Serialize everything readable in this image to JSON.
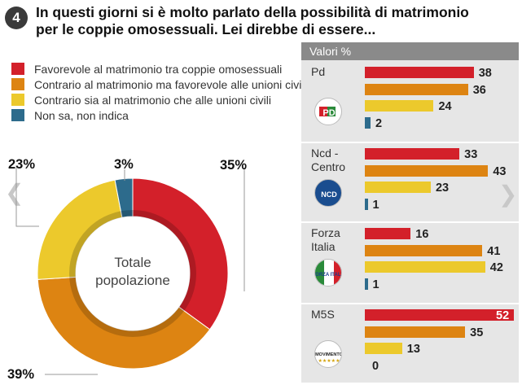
{
  "question": {
    "number": "4",
    "title_line1": "In questi giorni si è molto parlato della possibilità di matrimonio",
    "title_line2": "per le coppie omosessuali. Lei direbbe di essere..."
  },
  "legend": [
    {
      "label": "Favorevole al matrimonio tra coppie omosessuali",
      "color": "#d3202a"
    },
    {
      "label": "Contrario al matrimonio ma favorevole alle unioni civili",
      "color": "#dd8412"
    },
    {
      "label": "Contrario sia al matrimonio che alle unioni civili",
      "color": "#ecc92c"
    },
    {
      "label": "Non sa, non indica",
      "color": "#2d6b8c"
    }
  ],
  "panel_header": "Valori %",
  "chart_data": [
    {
      "type": "pie",
      "center_label_line1": "Totale",
      "center_label_line2": "popolazione",
      "slices": [
        {
          "value": 35,
          "label": "35%",
          "color": "#d3202a"
        },
        {
          "value": 39,
          "label": "39%",
          "color": "#dd8412"
        },
        {
          "value": 23,
          "label": "23%",
          "color": "#ecc92c"
        },
        {
          "value": 3,
          "label": "3%",
          "color": "#2d6b8c"
        }
      ]
    },
    {
      "type": "bar",
      "orientation": "horizontal",
      "colors": [
        "#d3202a",
        "#dd8412",
        "#ecc92c",
        "#2d6b8c"
      ],
      "xlim": [
        0,
        52
      ],
      "groups": [
        {
          "name_lines": [
            "Pd"
          ],
          "values": [
            38,
            36,
            24,
            2
          ],
          "logo": "pd-logo"
        },
        {
          "name_lines": [
            "Ncd -",
            "Centro"
          ],
          "values": [
            33,
            43,
            23,
            1
          ],
          "logo": "ncd-logo",
          "logo_text": "NCD"
        },
        {
          "name_lines": [
            "Forza",
            "Italia"
          ],
          "values": [
            16,
            41,
            42,
            1
          ],
          "logo": "forza-italia-logo",
          "logo_text": "FORZA ITALIA"
        },
        {
          "name_lines": [
            "M5S"
          ],
          "values": [
            52,
            35,
            13,
            0
          ],
          "logo": "m5s-logo",
          "logo_text": "MOVIMENTO"
        }
      ]
    }
  ]
}
